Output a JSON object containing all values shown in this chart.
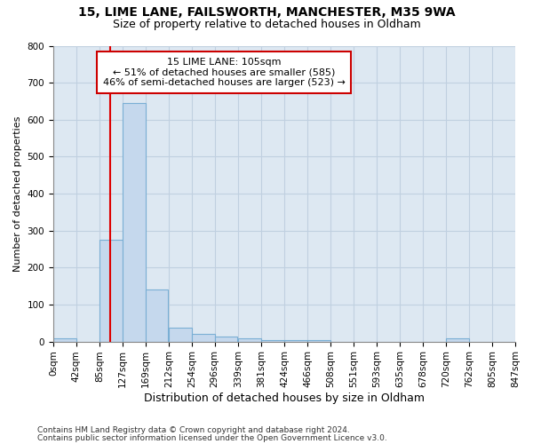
{
  "title1": "15, LIME LANE, FAILSWORTH, MANCHESTER, M35 9WA",
  "title2": "Size of property relative to detached houses in Oldham",
  "xlabel": "Distribution of detached houses by size in Oldham",
  "ylabel": "Number of detached properties",
  "footer1": "Contains HM Land Registry data © Crown copyright and database right 2024.",
  "footer2": "Contains public sector information licensed under the Open Government Licence v3.0.",
  "bin_edges": [
    0,
    42,
    85,
    127,
    169,
    212,
    254,
    296,
    339,
    381,
    424,
    466,
    508,
    551,
    593,
    635,
    678,
    720,
    762,
    805,
    847
  ],
  "bar_heights": [
    8,
    0,
    275,
    645,
    140,
    38,
    20,
    13,
    8,
    5,
    5,
    5,
    0,
    0,
    0,
    0,
    0,
    8,
    0,
    0
  ],
  "bar_color": "#c5d8ed",
  "bar_edgecolor": "#7aafd4",
  "property_size": 105,
  "red_line_color": "#dd0000",
  "annotation_line1": "15 LIME LANE: 105sqm",
  "annotation_line2": "← 51% of detached houses are smaller (585)",
  "annotation_line3": "46% of semi-detached houses are larger (523) →",
  "annotation_box_color": "#ffffff",
  "annotation_box_edgecolor": "#cc0000",
  "ylim": [
    0,
    800
  ],
  "yticks": [
    0,
    100,
    200,
    300,
    400,
    500,
    600,
    700,
    800
  ],
  "tick_labels": [
    "0sqm",
    "42sqm",
    "85sqm",
    "127sqm",
    "169sqm",
    "212sqm",
    "254sqm",
    "296sqm",
    "339sqm",
    "381sqm",
    "424sqm",
    "466sqm",
    "508sqm",
    "551sqm",
    "593sqm",
    "635sqm",
    "678sqm",
    "720sqm",
    "762sqm",
    "805sqm",
    "847sqm"
  ],
  "grid_color": "#c0d0e0",
  "background_color": "#dde8f2",
  "title1_fontsize": 10,
  "title2_fontsize": 9,
  "xlabel_fontsize": 9,
  "ylabel_fontsize": 8,
  "tick_fontsize": 7.5,
  "footer_fontsize": 6.5
}
